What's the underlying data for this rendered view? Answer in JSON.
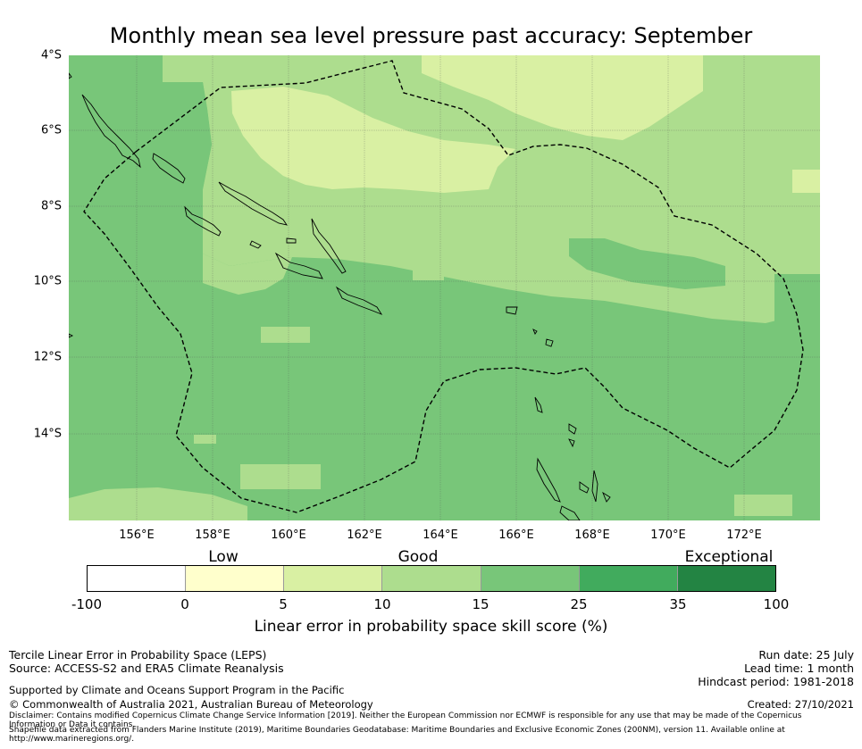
{
  "title": "Monthly mean sea level pressure past accuracy: September",
  "map": {
    "lat_ticks": [
      "4°S",
      "6°S",
      "8°S",
      "10°S",
      "12°S",
      "14°S"
    ],
    "lon_ticks": [
      "156°E",
      "158°E",
      "160°E",
      "162°E",
      "164°E",
      "166°E",
      "168°E",
      "170°E",
      "172°E"
    ],
    "extent": {
      "lon": [
        154.2,
        174.0
      ],
      "lat": [
        -4.0,
        -16.3
      ]
    }
  },
  "colorbar": {
    "categories": [
      "Low",
      "Good",
      "Exceptional"
    ],
    "tick_labels": [
      "-100",
      "0",
      "5",
      "10",
      "15",
      "25",
      "35",
      "100"
    ],
    "colors": [
      "#ffffff",
      "#ffffcc",
      "#d9f0a3",
      "#addd8e",
      "#78c679",
      "#41ab5d",
      "#238443"
    ],
    "label": "Linear error in probability space skill score (%)"
  },
  "footer": {
    "left1": "Tercile Linear Error in Probability Space (LEPS)",
    "left2": "Source: ACCESS-S2 and ERA5 Climate Reanalysis",
    "left3": "Supported by Climate and Oceans Support Program in the Pacific",
    "left4": "© Commonwealth of Australia 2021, Australian Bureau of Meteorology",
    "disclaimer1": "Disclaimer: Contains modified Copernicus Climate Change Service Information [2019]. Neither the European Commission nor ECMWF is responsible for any use that may be made of the Copernicus Information or Data it contains.",
    "disclaimer2": "Shapefile data extracted from Flanders Marine Institute (2019), Maritime Boundaries Geodatabase: Maritime Boundaries and Exclusive Economic Zones (200NM), version 11. Available online at http://www.marineregions.org/.",
    "run_date": "Run date: 25 July",
    "lead_time": "Lead time: 1 month",
    "hindcast": "Hindcast period: 1981-2018",
    "created": "Created: 27/10/2021"
  }
}
